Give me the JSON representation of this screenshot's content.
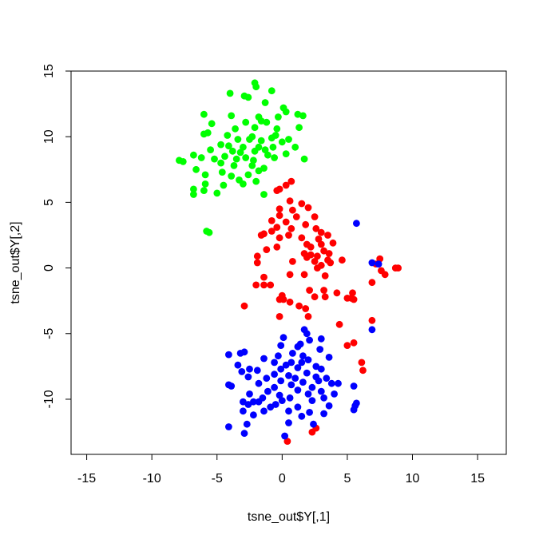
{
  "chart_data": {
    "type": "scatter",
    "title": "",
    "xlabel": "tsne_out$Y[,1]",
    "ylabel": "tsne_out$Y[,2]",
    "xlim": [
      -16.2,
      17.2
    ],
    "ylim": [
      -14.2,
      15.0
    ],
    "grid": false,
    "legend": "none",
    "xticks": [
      -15,
      -10,
      -5,
      0,
      5,
      10,
      15
    ],
    "xtick_labels": [
      "-15",
      "-10",
      "-5",
      "0",
      "5",
      "10",
      "15"
    ],
    "yticks": [
      -10,
      -5,
      0,
      5,
      10,
      15
    ],
    "ytick_labels": [
      "-10",
      "-5",
      "0",
      "5",
      "10",
      "15"
    ],
    "series": [
      {
        "color": "#00ff00",
        "points": [
          [
            -2.1,
            14.1
          ],
          [
            -2.0,
            13.8
          ],
          [
            -0.8,
            13.5
          ],
          [
            -4.0,
            13.3
          ],
          [
            -2.9,
            13.1
          ],
          [
            -2.6,
            13.0
          ],
          [
            -1.3,
            12.6
          ],
          [
            0.1,
            12.2
          ],
          [
            0.3,
            11.9
          ],
          [
            1.2,
            11.7
          ],
          [
            1.6,
            11.6
          ],
          [
            -6.0,
            11.7
          ],
          [
            -3.9,
            11.6
          ],
          [
            -1.8,
            11.5
          ],
          [
            -0.3,
            11.5
          ],
          [
            -5.4,
            11.0
          ],
          [
            -2.8,
            11.1
          ],
          [
            -1.6,
            11.2
          ],
          [
            -1.2,
            11.1
          ],
          [
            -3.6,
            10.6
          ],
          [
            -2.1,
            10.7
          ],
          [
            -0.4,
            10.6
          ],
          [
            1.3,
            10.7
          ],
          [
            -6.0,
            10.2
          ],
          [
            -5.7,
            10.3
          ],
          [
            -4.2,
            10.1
          ],
          [
            -2.3,
            10.0
          ],
          [
            -0.5,
            10.1
          ],
          [
            -3.4,
            9.8
          ],
          [
            -2.5,
            9.8
          ],
          [
            -1.6,
            9.7
          ],
          [
            -0.8,
            9.9
          ],
          [
            0.0,
            9.6
          ],
          [
            0.5,
            9.8
          ],
          [
            -4.7,
            9.4
          ],
          [
            -4.1,
            9.3
          ],
          [
            -3.0,
            9.2
          ],
          [
            -1.8,
            9.2
          ],
          [
            -1.3,
            9.0
          ],
          [
            -0.7,
            9.2
          ],
          [
            1.0,
            9.2
          ],
          [
            -5.5,
            9.0
          ],
          [
            -3.8,
            8.9
          ],
          [
            -3.2,
            8.8
          ],
          [
            -2.1,
            8.9
          ],
          [
            -1.1,
            8.6
          ],
          [
            0.3,
            8.7
          ],
          [
            -6.8,
            8.6
          ],
          [
            -6.2,
            8.4
          ],
          [
            -5.2,
            8.3
          ],
          [
            -4.4,
            8.5
          ],
          [
            -3.5,
            8.3
          ],
          [
            -2.8,
            8.4
          ],
          [
            -2.2,
            8.2
          ],
          [
            -0.6,
            8.4
          ],
          [
            1.7,
            8.3
          ],
          [
            -7.9,
            8.2
          ],
          [
            -7.6,
            8.1
          ],
          [
            -4.7,
            8.0
          ],
          [
            -3.7,
            7.8
          ],
          [
            -2.3,
            7.8
          ],
          [
            -1.4,
            7.6
          ],
          [
            -6.6,
            7.5
          ],
          [
            -4.6,
            7.3
          ],
          [
            -3.9,
            7.0
          ],
          [
            -2.6,
            7.1
          ],
          [
            -1.8,
            7.4
          ],
          [
            -5.9,
            7.1
          ],
          [
            -3.3,
            6.7
          ],
          [
            -2.0,
            6.6
          ],
          [
            -4.5,
            6.3
          ],
          [
            -3.0,
            6.4
          ],
          [
            -5.9,
            6.4
          ],
          [
            -6.8,
            6.0
          ],
          [
            -6.0,
            5.9
          ],
          [
            -6.8,
            5.6
          ],
          [
            -5.0,
            5.7
          ],
          [
            -1.4,
            5.6
          ],
          [
            -5.8,
            2.8
          ],
          [
            -5.6,
            2.7
          ]
        ]
      },
      {
        "color": "#ff0000",
        "points": [
          [
            0.7,
            6.6
          ],
          [
            0.3,
            6.3
          ],
          [
            -0.2,
            6.0
          ],
          [
            -0.4,
            5.9
          ],
          [
            0.6,
            5.1
          ],
          [
            1.5,
            4.9
          ],
          [
            2.0,
            4.6
          ],
          [
            -0.2,
            4.5
          ],
          [
            0.8,
            4.4
          ],
          [
            -0.2,
            4.0
          ],
          [
            1.1,
            3.9
          ],
          [
            2.5,
            3.9
          ],
          [
            -0.8,
            3.6
          ],
          [
            0.3,
            3.5
          ],
          [
            1.8,
            3.3
          ],
          [
            -0.4,
            3.1
          ],
          [
            0.7,
            3.0
          ],
          [
            2.6,
            3.0
          ],
          [
            -0.8,
            2.8
          ],
          [
            -1.6,
            2.5
          ],
          [
            -1.4,
            2.6
          ],
          [
            0.5,
            2.5
          ],
          [
            -0.2,
            2.3
          ],
          [
            3.0,
            2.7
          ],
          [
            3.5,
            2.5
          ],
          [
            1.5,
            2.3
          ],
          [
            2.8,
            2.2
          ],
          [
            3.0,
            1.8
          ],
          [
            1.9,
            1.8
          ],
          [
            3.9,
            1.9
          ],
          [
            2.2,
            1.6
          ],
          [
            -1.2,
            1.4
          ],
          [
            -0.4,
            1.6
          ],
          [
            3.2,
            1.3
          ],
          [
            1.7,
            1.1
          ],
          [
            2.2,
            1.0
          ],
          [
            2.7,
            0.9
          ],
          [
            3.6,
            1.1
          ],
          [
            -1.9,
            0.9
          ],
          [
            1.9,
            0.8
          ],
          [
            3.5,
            0.6
          ],
          [
            4.6,
            0.6
          ],
          [
            -1.9,
            0.4
          ],
          [
            0.8,
            0.5
          ],
          [
            2.5,
            0.5
          ],
          [
            3.0,
            0.2
          ],
          [
            3.7,
            0.4
          ],
          [
            2.7,
            0.0
          ],
          [
            7.5,
            0.7
          ],
          [
            7.2,
            0.3
          ],
          [
            8.7,
            0.0
          ],
          [
            8.9,
            0.0
          ],
          [
            7.6,
            -0.2
          ],
          [
            7.9,
            -0.5
          ],
          [
            -1.4,
            -0.7
          ],
          [
            0.6,
            -0.5
          ],
          [
            1.7,
            -0.5
          ],
          [
            3.3,
            -0.6
          ],
          [
            6.9,
            -1.1
          ],
          [
            -2.0,
            -1.3
          ],
          [
            -1.4,
            -1.3
          ],
          [
            -0.9,
            -1.3
          ],
          [
            2.1,
            -1.7
          ],
          [
            3.2,
            -1.7
          ],
          [
            4.2,
            -1.9
          ],
          [
            5.4,
            -1.9
          ],
          [
            0.0,
            -2.1
          ],
          [
            2.5,
            -2.2
          ],
          [
            3.3,
            -2.2
          ],
          [
            5.0,
            -2.3
          ],
          [
            5.3,
            -2.3
          ],
          [
            5.5,
            -2.4
          ],
          [
            0.1,
            -2.4
          ],
          [
            0.6,
            -2.6
          ],
          [
            -0.2,
            -2.4
          ],
          [
            -2.9,
            -2.9
          ],
          [
            1.3,
            -2.9
          ],
          [
            1.8,
            -3.1
          ],
          [
            2.0,
            -3.7
          ],
          [
            -0.2,
            -3.7
          ],
          [
            6.9,
            -4.0
          ],
          [
            4.4,
            -4.3
          ],
          [
            5.5,
            -5.7
          ],
          [
            5.0,
            -5.9
          ],
          [
            6.1,
            -7.2
          ],
          [
            6.2,
            -7.8
          ],
          [
            2.6,
            -12.2
          ],
          [
            2.3,
            -12.5
          ],
          [
            0.4,
            -13.2
          ]
        ]
      },
      {
        "color": "#0000ff",
        "points": [
          [
            5.7,
            3.4
          ],
          [
            6.9,
            0.4
          ],
          [
            7.4,
            0.3
          ],
          [
            6.9,
            -4.7
          ],
          [
            1.7,
            -4.7
          ],
          [
            1.9,
            -5.0
          ],
          [
            0.1,
            -5.3
          ],
          [
            2.1,
            -5.5
          ],
          [
            3.0,
            -5.4
          ],
          [
            -0.1,
            -5.9
          ],
          [
            1.4,
            -5.8
          ],
          [
            1.2,
            -6.0
          ],
          [
            2.9,
            -6.2
          ],
          [
            -2.9,
            -6.4
          ],
          [
            -3.2,
            -6.5
          ],
          [
            -4.1,
            -6.6
          ],
          [
            0.8,
            -6.5
          ],
          [
            -0.3,
            -6.7
          ],
          [
            1.6,
            -6.7
          ],
          [
            -1.4,
            -6.9
          ],
          [
            3.6,
            -6.8
          ],
          [
            2.0,
            -7.0
          ],
          [
            -0.6,
            -7.2
          ],
          [
            0.7,
            -7.2
          ],
          [
            1.5,
            -7.2
          ],
          [
            -3.4,
            -7.4
          ],
          [
            0.3,
            -7.4
          ],
          [
            2.6,
            -7.5
          ],
          [
            -2.5,
            -7.7
          ],
          [
            -1.9,
            -7.8
          ],
          [
            -0.1,
            -7.7
          ],
          [
            1.2,
            -7.6
          ],
          [
            3.0,
            -7.7
          ],
          [
            -3.1,
            -7.9
          ],
          [
            -0.6,
            -8.1
          ],
          [
            1.9,
            -8.0
          ],
          [
            -2.6,
            -8.3
          ],
          [
            0.5,
            -8.2
          ],
          [
            2.6,
            -8.3
          ],
          [
            -1.2,
            -8.4
          ],
          [
            1.0,
            -8.4
          ],
          [
            3.4,
            -8.4
          ],
          [
            -0.1,
            -8.6
          ],
          [
            1.6,
            -8.7
          ],
          [
            2.8,
            -8.6
          ],
          [
            -4.1,
            -8.9
          ],
          [
            -1.8,
            -8.8
          ],
          [
            0.7,
            -8.9
          ],
          [
            3.8,
            -8.8
          ],
          [
            4.3,
            -8.8
          ],
          [
            -3.9,
            -9.0
          ],
          [
            -0.6,
            -9.1
          ],
          [
            2.3,
            -9.1
          ],
          [
            5.5,
            -9.0
          ],
          [
            -1.1,
            -9.4
          ],
          [
            1.2,
            -9.3
          ],
          [
            3.0,
            -9.4
          ],
          [
            -2.5,
            -9.6
          ],
          [
            -0.2,
            -9.7
          ],
          [
            2.0,
            -9.6
          ],
          [
            4.0,
            -9.6
          ],
          [
            -1.5,
            -9.9
          ],
          [
            0.6,
            -9.9
          ],
          [
            3.2,
            -9.9
          ],
          [
            -3.0,
            -10.2
          ],
          [
            -2.2,
            -10.2
          ],
          [
            -1.8,
            -10.2
          ],
          [
            0.0,
            -10.1
          ],
          [
            2.3,
            -10.1
          ],
          [
            5.7,
            -10.3
          ],
          [
            -2.6,
            -10.4
          ],
          [
            -0.5,
            -10.4
          ],
          [
            3.6,
            -10.5
          ],
          [
            5.6,
            -10.5
          ],
          [
            -0.9,
            -10.6
          ],
          [
            1.2,
            -10.6
          ],
          [
            5.5,
            -10.8
          ],
          [
            -3.0,
            -10.9
          ],
          [
            -1.4,
            -10.9
          ],
          [
            0.5,
            -10.9
          ],
          [
            2.1,
            -11.0
          ],
          [
            3.2,
            -11.1
          ],
          [
            -2.2,
            -11.2
          ],
          [
            1.5,
            -11.3
          ],
          [
            -2.7,
            -11.9
          ],
          [
            0.5,
            -11.8
          ],
          [
            2.4,
            -11.9
          ],
          [
            -4.1,
            -12.1
          ],
          [
            -2.9,
            -12.6
          ],
          [
            0.2,
            -12.8
          ]
        ]
      }
    ]
  }
}
